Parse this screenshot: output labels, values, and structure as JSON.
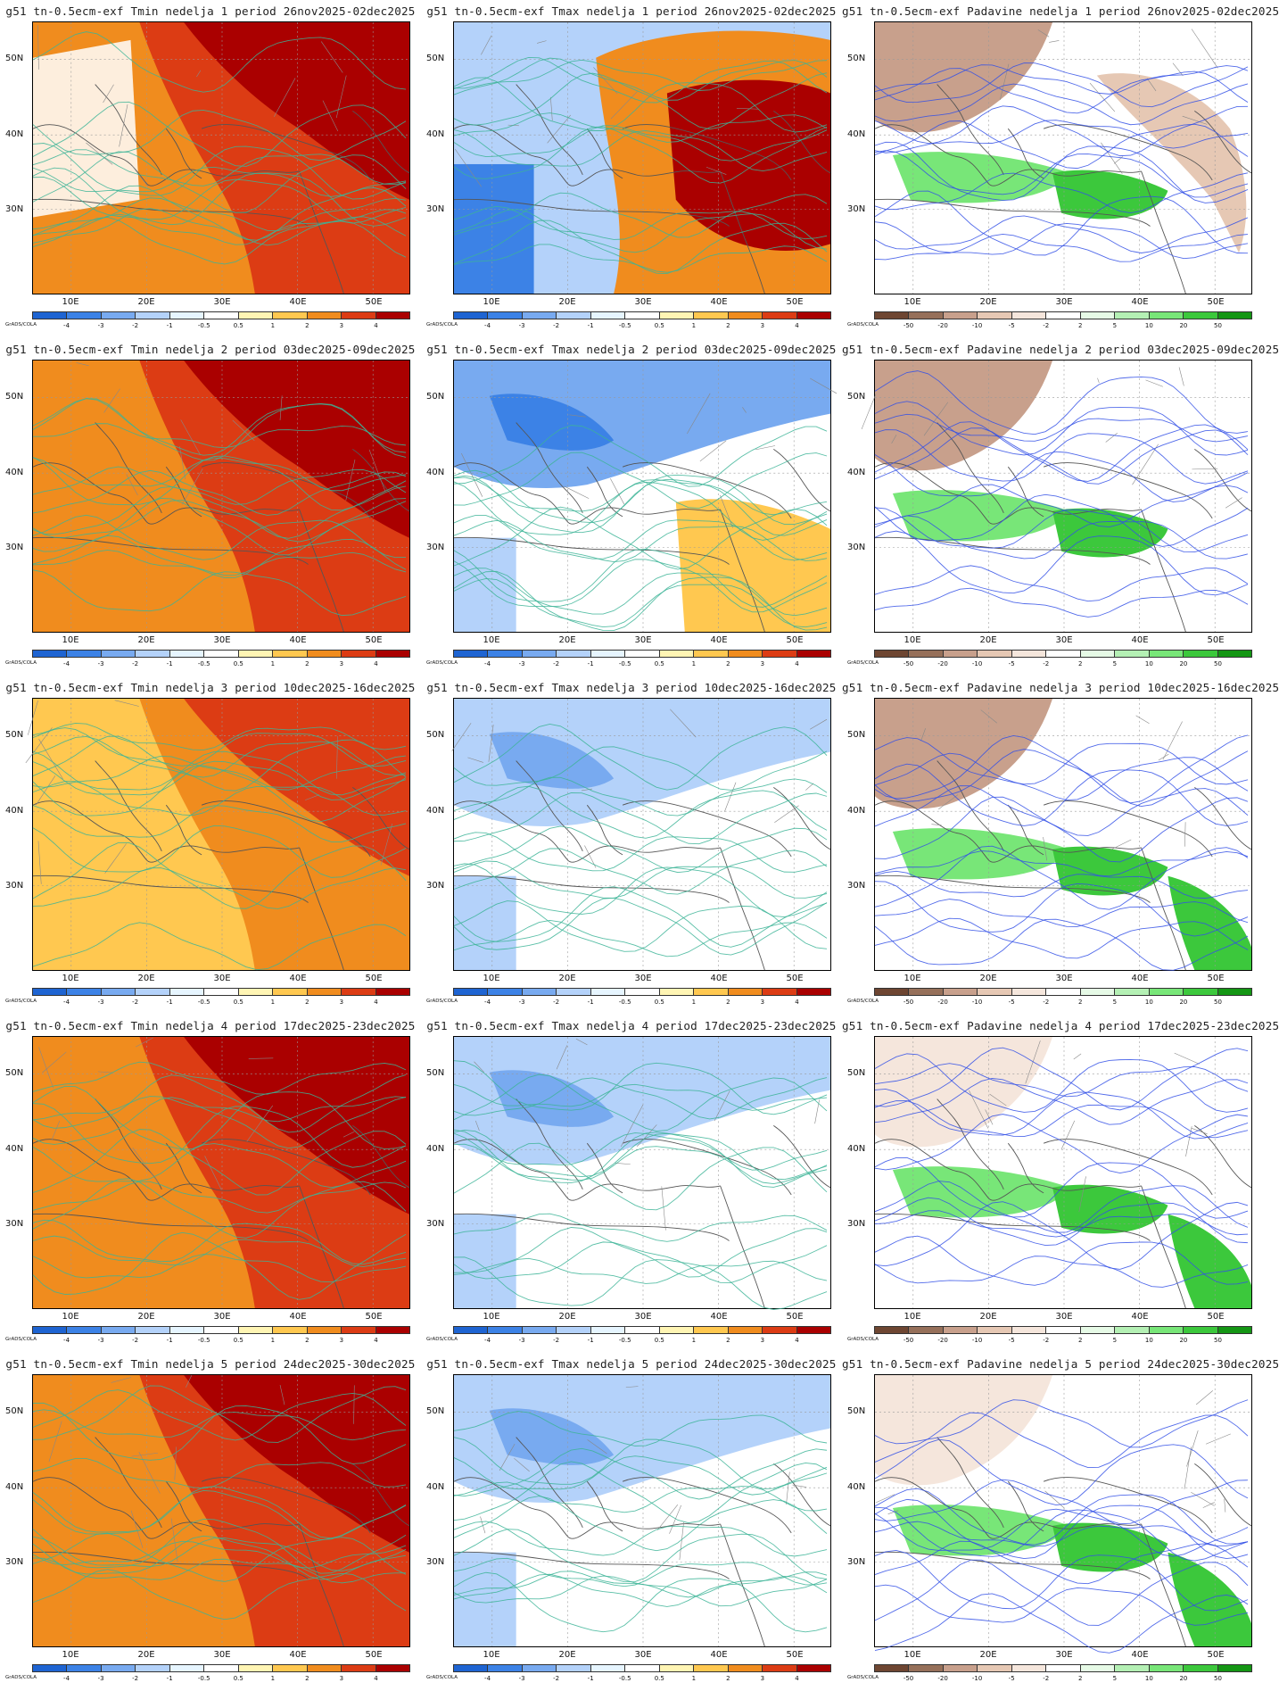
{
  "credit": "GrADS/COLA",
  "lat_labels": [
    "50N",
    "40N",
    "30N"
  ],
  "lon_labels": [
    "10E",
    "20E",
    "30E",
    "40E",
    "50E"
  ],
  "scales": {
    "temp": {
      "labels": [
        "-4",
        "-3",
        "-2",
        "-1",
        "-0.5",
        "0.5",
        "1",
        "2",
        "3",
        "4"
      ],
      "colors": [
        "#1e64d2",
        "#3c82e6",
        "#78aaf0",
        "#b4d2fa",
        "#e6f5ff",
        "#ffffff",
        "#fff5b4",
        "#ffc850",
        "#f08c1e",
        "#dc3c14",
        "#aa0000"
      ]
    },
    "precip": {
      "labels": [
        "-50",
        "-20",
        "-10",
        "-5",
        "-2",
        "2",
        "5",
        "10",
        "20",
        "50"
      ],
      "colors": [
        "#6e4632",
        "#96705a",
        "#c8a08c",
        "#e6c8b4",
        "#f5e6dc",
        "#ffffff",
        "#e6fae6",
        "#b4f0b4",
        "#78e678",
        "#3cc83c",
        "#149614"
      ]
    }
  },
  "rows": [
    {
      "panels": [
        {
          "title": "g51 tn-0.5ecm-exf Tmin nedelja 1 period 26nov2025-02dec2025",
          "kind": "tmin",
          "contour_color": "#3cb496"
        },
        {
          "title": "g51 tn-0.5ecm-exf Tmax nedelja 1 period 26nov2025-02dec2025",
          "kind": "tmax",
          "contour_color": "#3cb496"
        },
        {
          "title": "g51 tn-0.5ecm-exf Padavine nedelja 1 period 26nov2025-02dec2025",
          "kind": "precip",
          "contour_color": "#3250e6"
        }
      ]
    },
    {
      "panels": [
        {
          "title": "g51 tn-0.5ecm-exf Tmin nedelja 2 period 03dec2025-09dec2025",
          "kind": "tmin",
          "contour_color": "#3cb496"
        },
        {
          "title": "g51 tn-0.5ecm-exf Tmax nedelja 2 period 03dec2025-09dec2025",
          "kind": "tmax",
          "contour_color": "#3cb496"
        },
        {
          "title": "g51 tn-0.5ecm-exf Padavine nedelja 2 period 03dec2025-09dec2025",
          "kind": "precip",
          "contour_color": "#3250e6"
        }
      ]
    },
    {
      "panels": [
        {
          "title": "g51 tn-0.5ecm-exf Tmin nedelja 3 period 10dec2025-16dec2025",
          "kind": "tmin",
          "contour_color": "#3cb496"
        },
        {
          "title": "g51 tn-0.5ecm-exf Tmax nedelja 3 period 10dec2025-16dec2025",
          "kind": "tmax",
          "contour_color": "#3cb496"
        },
        {
          "title": "g51 tn-0.5ecm-exf Padavine nedelja 3 period 10dec2025-16dec2025",
          "kind": "precip",
          "contour_color": "#3250e6"
        }
      ]
    },
    {
      "panels": [
        {
          "title": "g51 tn-0.5ecm-exf Tmin nedelja 4 period 17dec2025-23dec2025",
          "kind": "tmin",
          "contour_color": "#3cb496"
        },
        {
          "title": "g51 tn-0.5ecm-exf Tmax nedelja 4 period 17dec2025-23dec2025",
          "kind": "tmax",
          "contour_color": "#3cb496"
        },
        {
          "title": "g51 tn-0.5ecm-exf Padavine nedelja 4 period 17dec2025-23dec2025",
          "kind": "precip",
          "contour_color": "#3250e6"
        }
      ]
    },
    {
      "panels": [
        {
          "title": "g51 tn-0.5ecm-exf Tmin nedelja 5 period 24dec2025-30dec2025",
          "kind": "tmin",
          "contour_color": "#3cb496"
        },
        {
          "title": "g51 tn-0.5ecm-exf Tmax nedelja 5 period 24dec2025-30dec2025",
          "kind": "tmax",
          "contour_color": "#3cb496"
        },
        {
          "title": "g51 tn-0.5ecm-exf Padavine nedelja 5 period 24dec2025-30dec2025",
          "kind": "precip",
          "contour_color": "#3250e6"
        }
      ]
    }
  ]
}
